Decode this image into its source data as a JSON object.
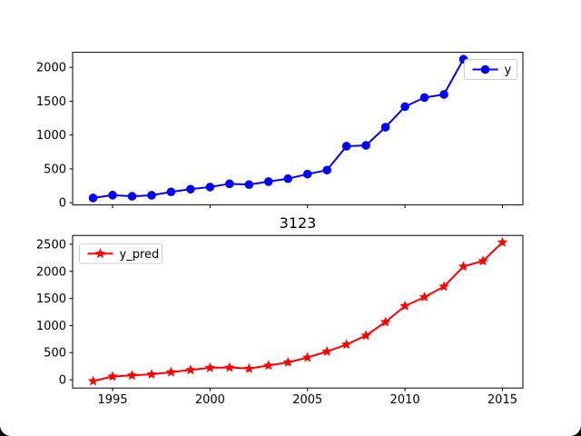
{
  "window": {
    "canvas_background": "#ffffff",
    "frame_background": "#000000"
  },
  "chart_data": [
    {
      "type": "line",
      "title": "",
      "xlim": [
        1992.95,
        2016.05
      ],
      "ylim": [
        -32.5,
        2222.5
      ],
      "xticks": [
        1995,
        2000,
        2005,
        2010,
        2015
      ],
      "yticks": [
        0,
        500,
        1000,
        1500,
        2000
      ],
      "x_tick_labels_shown": false,
      "grid": false,
      "legend_position": "upper right",
      "series": [
        {
          "name": "y",
          "color": "#0000ff",
          "marker": "circle",
          "x": [
            1994,
            1995,
            1996,
            1997,
            1998,
            1999,
            2000,
            2001,
            2002,
            2003,
            2004,
            2005,
            2006,
            2007,
            2008,
            2009,
            2010,
            2011,
            2012,
            2013
          ],
          "values": [
            70,
            112,
            95,
            110,
            160,
            200,
            232,
            280,
            268,
            312,
            355,
            423,
            482,
            835,
            848,
            1116,
            1420,
            1554,
            1600,
            2120
          ]
        }
      ]
    },
    {
      "type": "line",
      "title": "3123",
      "xlim": [
        1992.95,
        2016.05
      ],
      "ylim": [
        -153,
        2663
      ],
      "xticks": [
        1995,
        2000,
        2005,
        2010,
        2015
      ],
      "yticks": [
        0,
        500,
        1000,
        1500,
        2000,
        2500
      ],
      "x_tick_labels_shown": true,
      "grid": false,
      "legend_position": "upper left",
      "series": [
        {
          "name": "y_pred",
          "color": "#ff0000",
          "marker": "star",
          "x": [
            1994,
            1995,
            1996,
            1997,
            1998,
            1999,
            2000,
            2001,
            2002,
            2003,
            2004,
            2005,
            2006,
            2007,
            2008,
            2009,
            2010,
            2011,
            2012,
            2013,
            2014,
            2015
          ],
          "values": [
            -25,
            60,
            80,
            100,
            140,
            180,
            220,
            225,
            205,
            263,
            320,
            410,
            520,
            650,
            815,
            1065,
            1360,
            1525,
            1720,
            2090,
            2190,
            2535
          ]
        }
      ]
    }
  ]
}
